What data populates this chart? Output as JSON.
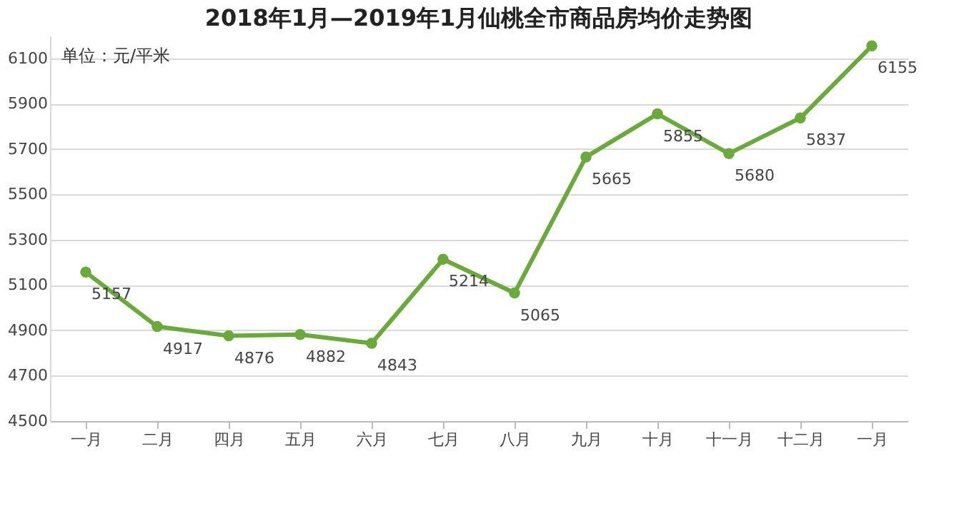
{
  "chart_data": {
    "type": "line",
    "title": "2018年1月—2019年1月仙桃全市商品房均价走势图",
    "categories": [
      "一月",
      "二月",
      "四月",
      "五月",
      "六月",
      "七月",
      "八月",
      "九月",
      "十月",
      "十一月",
      "十二月",
      "一月"
    ],
    "series": [
      {
        "color": "#6aaa3a",
        "values": [
          5157,
          4917,
          4876,
          4882,
          4843,
          5214,
          5065,
          5665,
          5855,
          5680,
          5837,
          6155
        ]
      }
    ],
    "ylim": [
      4500,
      6200
    ],
    "yticks": [
      4500,
      4700,
      4900,
      5100,
      5300,
      5500,
      5700,
      5900,
      6100
    ],
    "grid": "y",
    "marker": "circle",
    "line_style": "solid",
    "data_labels": true,
    "annotations": [
      "单位：元/平米"
    ]
  }
}
